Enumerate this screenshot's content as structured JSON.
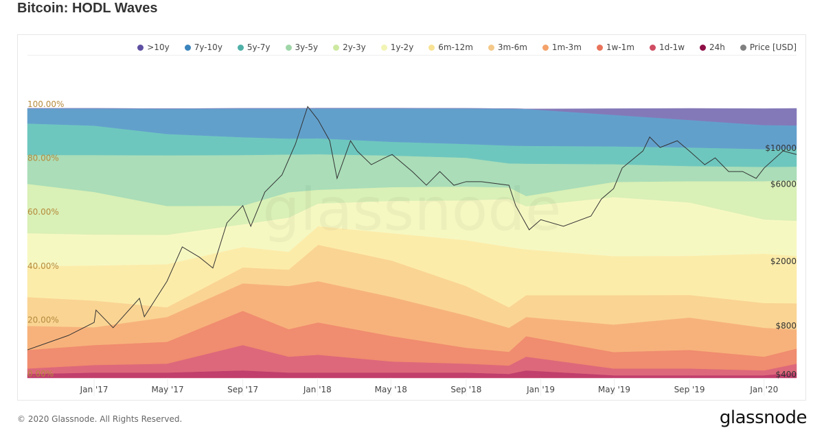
{
  "title": "Bitcoin: HODL Waves",
  "footer": "© 2020 Glassnode. All Rights Reserved.",
  "logo_text": "glassnode",
  "watermark": "glassnode",
  "chart_data": {
    "type": "area",
    "stacked": true,
    "normalized_percent": true,
    "title": "Bitcoin: HODL Waves",
    "legend_position": "top-right",
    "grid": false,
    "x_ticks": [
      "Jan '17",
      "May '17",
      "Sep '17",
      "Jan '18",
      "May '18",
      "Sep '18",
      "Jan '19",
      "May '19",
      "Sep '19",
      "Jan '20"
    ],
    "x_tick_dates": [
      "2017-01-01",
      "2017-05-01",
      "2017-09-01",
      "2018-01-01",
      "2018-05-01",
      "2018-09-01",
      "2019-01-01",
      "2019-05-01",
      "2019-09-01",
      "2020-01-01"
    ],
    "xlim": [
      "2016-09-14",
      "2020-02-23"
    ],
    "y_left": {
      "ticks": [
        "0.00%",
        "20.00%",
        "40.00%",
        "60.00%",
        "80.00%",
        "100.00%"
      ],
      "ylim": [
        0,
        100
      ],
      "color": "#b58a3c"
    },
    "y_right": {
      "ticks": [
        "$400",
        "$800",
        "$2000",
        "$6000",
        "$10000"
      ],
      "tick_values": [
        400,
        800,
        2000,
        6000,
        10000
      ],
      "scale": "log",
      "ylim": [
        377,
        17400
      ]
    },
    "dates": [
      "2016-09-14",
      "2017-01-01",
      "2017-04-30",
      "2017-09-01",
      "2017-11-15",
      "2018-01-02",
      "2018-05-03",
      "2018-09-01",
      "2018-11-10",
      "2018-12-08",
      "2019-04-30",
      "2019-09-01",
      "2020-01-01",
      "2020-02-23"
    ],
    "series": [
      {
        "name": ">10y",
        "color": "#8479b8",
        "legend_color": "#5e4fa2",
        "values": [
          0,
          0,
          0,
          0,
          0,
          0,
          0,
          0,
          0,
          0,
          2.3,
          4.3,
          6.1,
          6.4
        ]
      },
      {
        "name": "7y-10y",
        "color": "#62a0cc",
        "legend_color": "#3a84bd",
        "values": [
          5.6,
          6.4,
          9.4,
          10.7,
          11.2,
          11.2,
          12.5,
          13.2,
          13.7,
          13.7,
          11.7,
          10.2,
          8.9,
          8.7
        ]
      },
      {
        "name": "5y-7y",
        "color": "#6ec7be",
        "legend_color": "#4fb0a8",
        "values": [
          11.7,
          10.9,
          7.9,
          6.6,
          5.9,
          5.9,
          5.1,
          5.1,
          6.6,
          6.6,
          6.6,
          6.9,
          6.6,
          6.6
        ]
      },
      {
        "name": "3y-5y",
        "color": "#aaddb8",
        "legend_color": "#9fd6a8",
        "values": [
          10.7,
          13.7,
          18.8,
          18.8,
          14.0,
          13.2,
          11.7,
          10.7,
          8.9,
          12.0,
          6.6,
          5.6,
          5.3,
          5.1
        ]
      },
      {
        "name": "2y-3y",
        "color": "#d9f0b6",
        "legend_color": "#cde9a0",
        "values": [
          18.3,
          15.8,
          10.7,
          6.9,
          9.4,
          5.1,
          5.1,
          5.1,
          4.3,
          3.8,
          5.6,
          7.9,
          14.2,
          15.0
        ]
      },
      {
        "name": "1y-2y",
        "color": "#f6f8c2",
        "legend_color": "#f2f4b4",
        "values": [
          12.2,
          11.5,
          10.9,
          8.4,
          12.7,
          8.4,
          12.0,
          14.8,
          17.8,
          16.0,
          21.9,
          19.8,
          12.7,
          13.0
        ]
      },
      {
        "name": "6m-12m",
        "color": "#fcecaa",
        "legend_color": "#f8e394",
        "values": [
          11.5,
          13.0,
          16.0,
          7.6,
          6.6,
          6.9,
          10.2,
          17.0,
          22.4,
          17.0,
          14.5,
          14.5,
          18.3,
          17.6
        ]
      },
      {
        "name": "3m-6m",
        "color": "#fad493",
        "legend_color": "#f5c98a",
        "values": [
          10.7,
          9.9,
          3.6,
          5.9,
          6.1,
          13.5,
          13.5,
          10.9,
          7.6,
          8.1,
          10.9,
          8.4,
          9.2,
          9.7
        ]
      },
      {
        "name": "1m-3m",
        "color": "#f7b27b",
        "legend_color": "#f4a26a",
        "values": [
          8.9,
          6.6,
          9.2,
          10.2,
          16.0,
          15.3,
          14.5,
          12.0,
          8.9,
          7.1,
          10.2,
          12.0,
          10.7,
          7.1
        ]
      },
      {
        "name": "1w-1m",
        "color": "#f08c6f",
        "legend_color": "#e8735a",
        "values": [
          6.9,
          7.4,
          8.1,
          12.7,
          10.2,
          12.0,
          9.4,
          5.9,
          5.1,
          7.6,
          6.1,
          6.9,
          5.1,
          5.6
        ]
      },
      {
        "name": "1d-1w",
        "color": "#dd687b",
        "legend_color": "#cf4c62",
        "values": [
          2.0,
          2.8,
          3.3,
          9.4,
          5.9,
          6.6,
          4.1,
          3.3,
          3.1,
          5.1,
          2.5,
          2.5,
          1.8,
          3.3
        ]
      },
      {
        "name": "24h",
        "color": "#c13f6c",
        "legend_color": "#8e0f45",
        "values": [
          1.5,
          2.0,
          2.0,
          2.8,
          2.0,
          2.0,
          2.0,
          2.0,
          1.5,
          2.8,
          1.0,
          1.0,
          1.0,
          2.0
        ]
      }
    ],
    "price": {
      "name": "Price [USD]",
      "color": "#333333",
      "legend_color": "#808080",
      "dates": [
        "2016-09-14",
        "2016-11-20",
        "2017-01-01",
        "2017-01-04",
        "2017-02-01",
        "2017-03-16",
        "2017-03-24",
        "2017-04-30",
        "2017-05-25",
        "2017-06-22",
        "2017-07-14",
        "2017-08-06",
        "2017-09-01",
        "2017-09-14",
        "2017-10-07",
        "2017-11-04",
        "2017-11-26",
        "2017-12-16",
        "2018-01-02",
        "2018-01-21",
        "2018-02-02",
        "2018-02-24",
        "2018-03-07",
        "2018-03-30",
        "2018-04-21",
        "2018-05-03",
        "2018-06-05",
        "2018-06-28",
        "2018-07-20",
        "2018-08-12",
        "2018-09-01",
        "2018-09-26",
        "2018-11-10",
        "2018-11-21",
        "2018-12-13",
        "2019-01-01",
        "2019-02-07",
        "2019-03-24",
        "2019-04-10",
        "2019-04-30",
        "2019-05-14",
        "2019-06-17",
        "2019-06-28",
        "2019-07-15",
        "2019-08-12",
        "2019-09-01",
        "2019-09-26",
        "2019-10-13",
        "2019-11-04",
        "2019-11-27",
        "2019-12-19",
        "2020-01-01",
        "2020-02-01",
        "2020-02-23"
      ],
      "values": [
        562,
        690,
        830,
        990,
        770,
        1170,
        900,
        1490,
        2430,
        2100,
        1800,
        3420,
        4370,
        3260,
        5300,
        6770,
        10500,
        17900,
        14800,
        11000,
        6440,
        11000,
        9500,
        7830,
        8630,
        9050,
        7100,
        5850,
        7100,
        5840,
        6150,
        6150,
        5840,
        4370,
        3100,
        3580,
        3260,
        3770,
        4800,
        5570,
        7460,
        9520,
        11600,
        10000,
        11000,
        9500,
        7830,
        8630,
        7100,
        7100,
        6440,
        7460,
        9520,
        9050
      ]
    }
  }
}
